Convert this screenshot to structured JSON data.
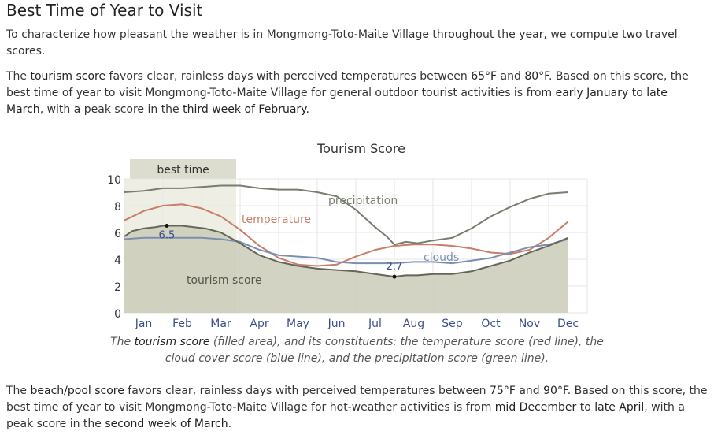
{
  "heading": "Best Time of Year to Visit",
  "intro": "To characterize how pleasant the weather is in Mongmong-Toto-Maite Village throughout the year, we compute two travel scores.",
  "tourism_paragraph": {
    "t1": "The ",
    "score_name": "tourism score",
    "t2": " favors clear, rainless days with perceived temperatures between ",
    "temp_low": "65°F",
    "t3": " and ",
    "temp_high": "80°F",
    "t4": ". Based on this score, the best time of year to visit Mongmong-Toto-Maite Village for general outdoor tourist activities is from ",
    "start": "early January",
    "t5": " to ",
    "end": "late March",
    "t6": ", with a peak score in the ",
    "peak": "third week of February",
    "t7": "."
  },
  "caption": {
    "c1": "The ",
    "score_name": "tourism score",
    "c2": " (filled area), and its constituents: the temperature score (red line), the cloud cover score (blue line), and the precipitation score (green line)."
  },
  "beach_paragraph": {
    "t1": "The ",
    "score_name": "beach/pool score",
    "t2": " favors clear, rainless days with perceived temperatures between ",
    "temp_low": "75°F",
    "t3": " and ",
    "temp_high": "90°F",
    "t4": ". Based on this score, the best time of year to visit Mongmong-Toto-Maite Village for hot-weather activities is from ",
    "start": "mid December",
    "t5": " to ",
    "end": "late April",
    "t6": ", with a peak score in the ",
    "peak": "second week of March",
    "t7": "."
  },
  "chart_data": {
    "type": "area",
    "title": "Tourism Score",
    "categories": [
      "Jan",
      "Feb",
      "Mar",
      "Apr",
      "May",
      "Jun",
      "Jul",
      "Aug",
      "Sep",
      "Oct",
      "Nov",
      "Dec"
    ],
    "yticks": [
      0,
      2,
      4,
      6,
      8,
      10
    ],
    "ylim": [
      0,
      10
    ],
    "best_time": {
      "label": "best time",
      "start_month": 0,
      "end_month": 2.9
    },
    "colors": {
      "area_fill": "#cbcbb9",
      "area_line": "#666658",
      "best_fill": "#eeeee5",
      "best_label_fill": "#dcdccf",
      "temperature": "#c87d68",
      "clouds": "#7a8fb0",
      "precipitation": "#767e6e",
      "grid": "#e6e6e6",
      "blue_text": "#3a4f8a"
    },
    "series": [
      {
        "name": "tourism score",
        "key": "tourism",
        "x": [
          0,
          0.2,
          0.5,
          0.8,
          1.0,
          1.2,
          1.5,
          1.8,
          2.1,
          2.5,
          3.0,
          3.5,
          4.0,
          4.5,
          5.0,
          5.5,
          6.0,
          6.5,
          7.0,
          7.3,
          7.6,
          8.0,
          8.5,
          9.0,
          9.5,
          10.0,
          10.5,
          11.0,
          11.5
        ],
        "values": [
          5.7,
          6.1,
          6.3,
          6.4,
          6.5,
          6.5,
          6.5,
          6.4,
          6.3,
          6.0,
          5.2,
          4.3,
          3.8,
          3.5,
          3.3,
          3.2,
          3.1,
          2.9,
          2.7,
          2.8,
          2.8,
          2.9,
          2.9,
          3.1,
          3.5,
          3.9,
          4.5,
          5.0,
          5.6
        ]
      },
      {
        "name": "temperature",
        "key": "temperature",
        "x": [
          0,
          0.5,
          1.0,
          1.5,
          2.0,
          2.5,
          3.0,
          3.5,
          4.0,
          4.5,
          5.0,
          5.5,
          6.0,
          6.5,
          7.0,
          7.5,
          8.0,
          8.5,
          9.0,
          9.5,
          10.0,
          10.5,
          11.0,
          11.5
        ],
        "values": [
          6.9,
          7.6,
          8.0,
          8.1,
          7.8,
          7.2,
          6.2,
          5.0,
          4.1,
          3.6,
          3.5,
          3.6,
          4.2,
          4.7,
          5.0,
          5.1,
          5.1,
          5.0,
          4.8,
          4.5,
          4.4,
          4.7,
          5.6,
          6.8
        ]
      },
      {
        "name": "clouds",
        "key": "clouds",
        "x": [
          0,
          0.5,
          1.0,
          1.5,
          2.0,
          2.5,
          3.0,
          3.5,
          4.0,
          4.5,
          5.0,
          5.5,
          6.0,
          6.5,
          7.0,
          7.5,
          8.0,
          8.5,
          9.0,
          9.5,
          10.0,
          10.5,
          11.0,
          11.5
        ],
        "values": [
          5.5,
          5.6,
          5.6,
          5.6,
          5.6,
          5.5,
          5.3,
          4.7,
          4.3,
          4.2,
          4.1,
          3.8,
          3.7,
          3.7,
          3.7,
          3.8,
          3.8,
          3.7,
          3.9,
          4.1,
          4.5,
          4.9,
          5.1,
          5.5
        ]
      },
      {
        "name": "precipitation",
        "key": "precipitation",
        "x": [
          0,
          0.5,
          1.0,
          1.5,
          2.0,
          2.5,
          3.0,
          3.5,
          4.0,
          4.5,
          5.0,
          5.5,
          6.0,
          6.5,
          6.8,
          7.0,
          7.3,
          7.6,
          8.0,
          8.5,
          9.0,
          9.5,
          10.0,
          10.5,
          11.0,
          11.5
        ],
        "values": [
          9.0,
          9.1,
          9.3,
          9.3,
          9.4,
          9.5,
          9.5,
          9.3,
          9.2,
          9.2,
          9.0,
          8.7,
          7.7,
          6.4,
          5.7,
          5.1,
          5.3,
          5.2,
          5.4,
          5.6,
          6.3,
          7.2,
          7.9,
          8.5,
          8.9,
          9.0
        ]
      }
    ],
    "annotations": [
      {
        "label": "6.5",
        "x": 1.1,
        "y": 6.5
      },
      {
        "label": "2.7",
        "x": 7.0,
        "y": 2.7
      }
    ],
    "series_labels": {
      "temperature": "temperature",
      "clouds": "clouds",
      "precipitation": "precipitation",
      "tourism": "tourism score"
    }
  }
}
